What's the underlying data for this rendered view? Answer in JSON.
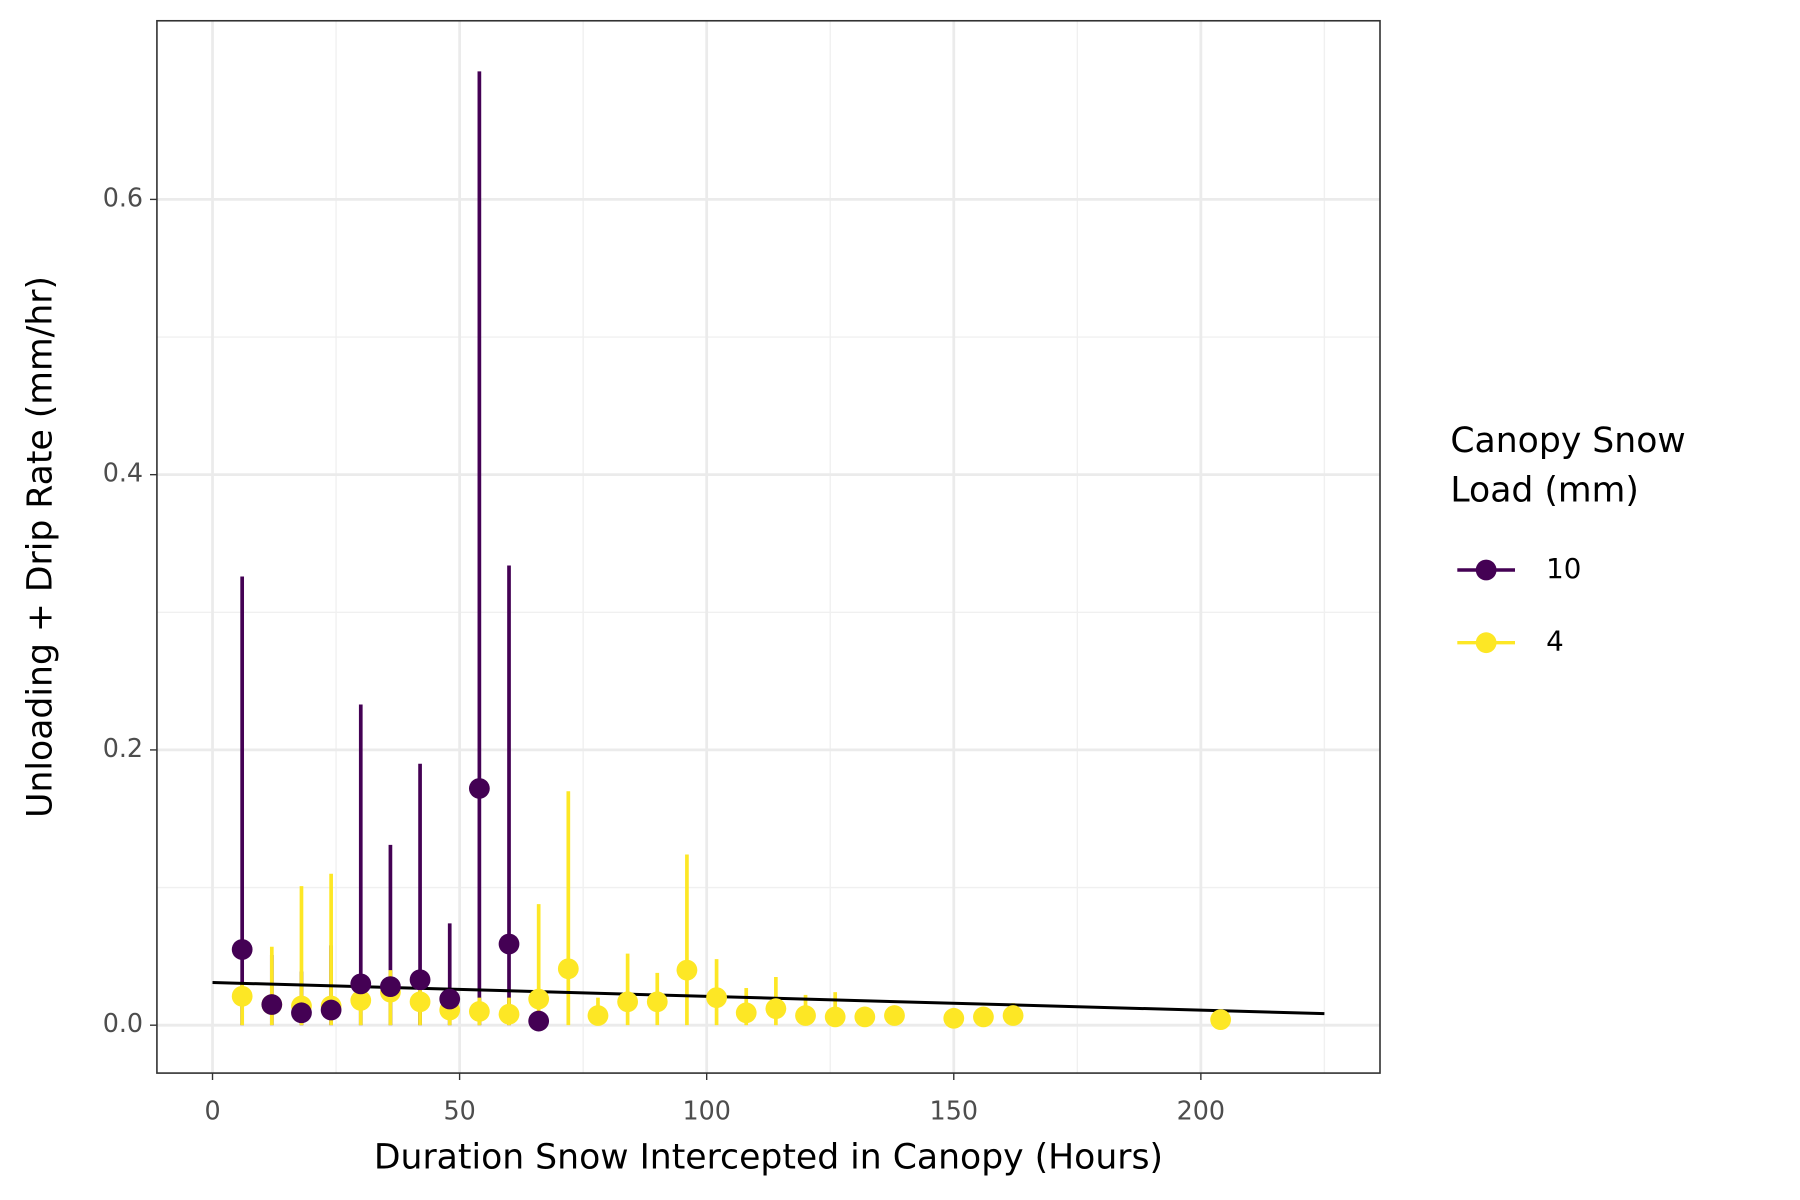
{
  "chart_data": {
    "type": "pointrange",
    "x_label": "Duration Snow Intercepted in Canopy (Hours)",
    "y_label": "Unloading + Drip Rate (mm/hr)",
    "legend_title": [
      "Canopy Snow",
      "Load (mm)"
    ],
    "legend_position": "right",
    "grid": true,
    "xlim": [
      -11.25,
      236.25
    ],
    "ylim": [
      -0.0348,
      0.7298
    ],
    "xticks": [
      0,
      50,
      100,
      150,
      200
    ],
    "yticks": [
      {
        "value": 0,
        "label": "0.0"
      },
      {
        "value": 0.2,
        "label": "0.2"
      },
      {
        "value": 0.4,
        "label": "0.4"
      },
      {
        "value": 0.6,
        "label": "0.6"
      }
    ],
    "minor_xticks": [
      25,
      75,
      125,
      175,
      225
    ],
    "minor_yticks": [
      0.1,
      0.3,
      0.5
    ],
    "series": [
      {
        "name": "10",
        "color": "#440154",
        "x": [
          6,
          12,
          18,
          24,
          30,
          36,
          42,
          48,
          54,
          60,
          66
        ],
        "values": [
          0.055,
          0.015,
          0.009,
          0.011,
          0.03,
          0.028,
          0.033,
          0.019,
          0.172,
          0.059,
          0.003
        ],
        "lower": [
          0,
          0,
          0,
          0,
          0,
          0,
          0,
          0,
          0,
          0,
          0.003
        ],
        "upper": [
          0.326,
          0.051,
          0.039,
          0.058,
          0.233,
          0.131,
          0.19,
          0.074,
          0.693,
          0.334,
          0.003
        ]
      },
      {
        "name": "4",
        "color": "#FDE725",
        "x": [
          6,
          12,
          18,
          24,
          30,
          36,
          42,
          48,
          54,
          60,
          66,
          72,
          78,
          84,
          90,
          96,
          102,
          108,
          114,
          120,
          126,
          132,
          138,
          150,
          156,
          162,
          204
        ],
        "values": [
          0.021,
          0.015,
          0.014,
          0.014,
          0.018,
          0.024,
          0.017,
          0.011,
          0.01,
          0.008,
          0.019,
          0.041,
          0.007,
          0.017,
          0.017,
          0.04,
          0.02,
          0.009,
          0.012,
          0.007,
          0.006,
          0.006,
          0.007,
          0.005,
          0.006,
          0.007,
          0.004
        ],
        "lower": [
          0,
          0,
          0,
          0,
          0,
          0,
          0,
          0,
          0,
          0,
          0,
          0,
          0,
          0,
          0,
          0,
          0,
          0,
          0,
          0,
          0,
          0,
          0,
          0,
          0,
          0,
          0
        ],
        "upper": [
          0.03,
          0.057,
          0.101,
          0.11,
          0.03,
          0.04,
          0.03,
          0.02,
          0.02,
          0.02,
          0.088,
          0.17,
          0.02,
          0.052,
          0.038,
          0.124,
          0.048,
          0.027,
          0.035,
          0.022,
          0.024,
          0.01,
          0.01,
          0.008,
          0.01,
          0.016,
          0.006
        ]
      }
    ],
    "trend": {
      "color": "#000000",
      "x": [
        0,
        225
      ],
      "values": [
        0.031,
        0.0084
      ]
    }
  }
}
